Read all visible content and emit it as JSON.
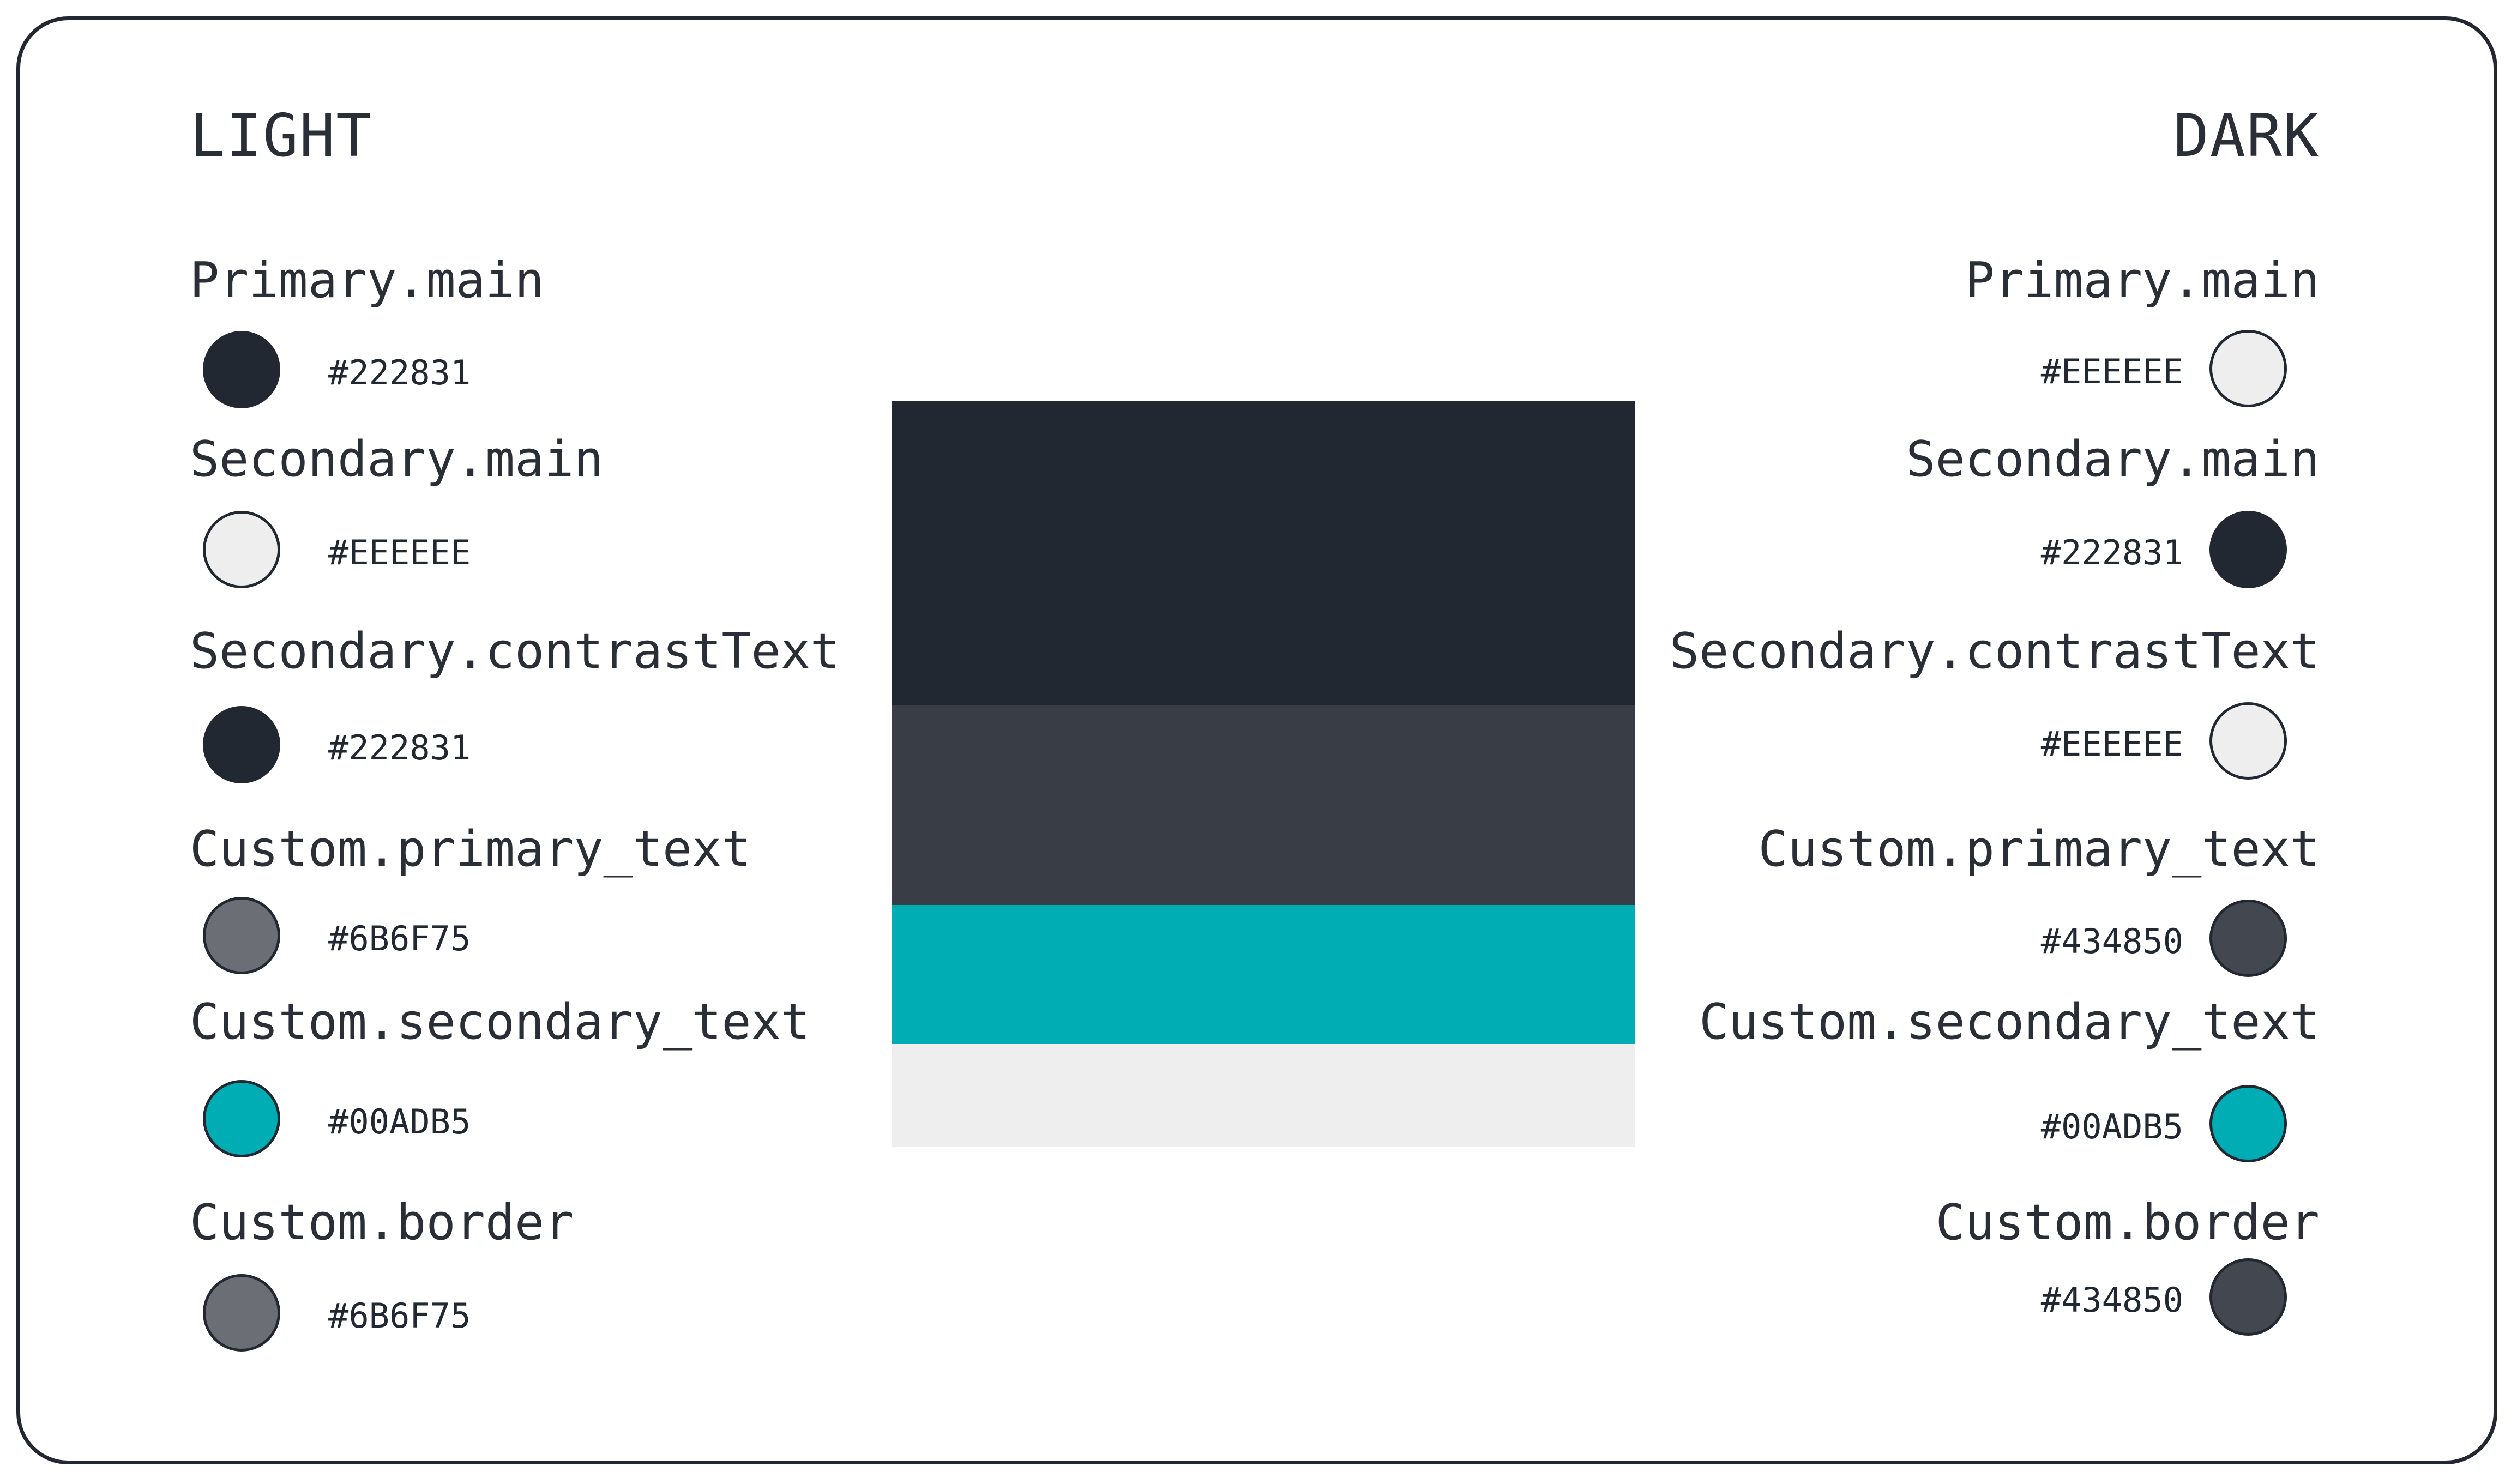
{
  "light": {
    "heading": "LIGHT",
    "entries": [
      {
        "label": "Primary.main",
        "hex": "#222831",
        "color": "#222831"
      },
      {
        "label": "Secondary.main",
        "hex": "#EEEEEE",
        "color": "#EEEEEE"
      },
      {
        "label": "Secondary.contrastText",
        "hex": "#222831",
        "color": "#222831"
      },
      {
        "label": "Custom.primary_text",
        "hex": "#6B6F75",
        "color": "#6B6F75"
      },
      {
        "label": "Custom.secondary_text",
        "hex": "#00ADB5",
        "color": "#00ADB5"
      },
      {
        "label": "Custom.border",
        "hex": "#6B6F75",
        "color": "#6B6F75"
      }
    ]
  },
  "dark": {
    "heading": "DARK",
    "entries": [
      {
        "label": "Primary.main",
        "hex": "#EEEEEE",
        "color": "#EEEEEE"
      },
      {
        "label": "Secondary.main",
        "hex": "#222831",
        "color": "#222831"
      },
      {
        "label": "Secondary.contrastText",
        "hex": "#EEEEEE",
        "color": "#EEEEEE"
      },
      {
        "label": "Custom.primary_text",
        "hex": "#434850",
        "color": "#434850"
      },
      {
        "label": "Custom.secondary_text",
        "hex": "#00ADB5",
        "color": "#00ADB5"
      },
      {
        "label": "Custom.border",
        "hex": "#434850",
        "color": "#434850"
      }
    ]
  },
  "palette_strip": {
    "colors": [
      "#222831",
      "#393E46",
      "#00ADB5",
      "#EEEEEE"
    ]
  }
}
